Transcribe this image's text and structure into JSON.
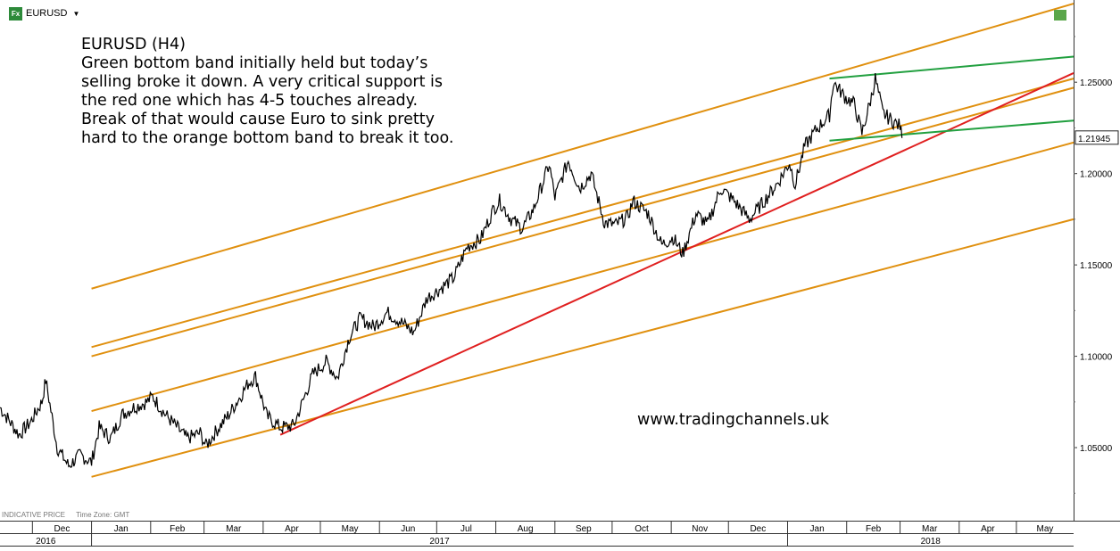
{
  "toolbar": {
    "instrument_label": "EURUSD",
    "fx_icon": "Fx",
    "dropdown_icon": "chevron-down-icon"
  },
  "annotation": {
    "title": "EURUSD (H4)",
    "lines": [
      "Green bottom band initially held but today’s",
      "selling broke it down. A very critical support is",
      "the red one which has 4-5 touches already.",
      "Break of that would cause Euro to sink pretty",
      "hard to the orange bottom band to break it too."
    ]
  },
  "watermark": "www.tradingchannels.uk",
  "footer": {
    "indicative": "INDICATIVE PRICE",
    "timezone": "Time Zone: GMT"
  },
  "colors": {
    "price": "#000000",
    "orange_channel": "#e0900f",
    "red_trendline": "#e02020",
    "green_channel": "#22a040",
    "axis_text": "#000000",
    "grid": "#555555"
  },
  "chart_data": {
    "type": "line",
    "symbol": "EURUSD",
    "timeframe": "H4",
    "x_months": [
      "Dec",
      "Jan",
      "Feb",
      "Mar",
      "Apr",
      "May",
      "Jun",
      "Jul",
      "Aug",
      "Sep",
      "Oct",
      "Nov",
      "Dec",
      "Jan",
      "Feb",
      "Mar",
      "Apr",
      "May"
    ],
    "x_years": [
      "2016",
      "2017",
      "2018"
    ],
    "ylim": [
      1.01,
      1.295
    ],
    "y_ticks": [
      "1.05000",
      "1.10000",
      "1.15000",
      "1.20000",
      "1.25000"
    ],
    "last_price": "1.21945",
    "series": [
      {
        "values": [
          [
            "2016-11-14",
            1.072
          ],
          [
            "2016-11-18",
            1.066
          ],
          [
            "2016-11-24",
            1.057
          ],
          [
            "2016-11-30",
            1.064
          ],
          [
            "2016-12-06",
            1.075
          ],
          [
            "2016-12-08",
            1.087
          ],
          [
            "2016-12-14",
            1.05
          ],
          [
            "2016-12-20",
            1.04
          ],
          [
            "2016-12-26",
            1.046
          ],
          [
            "2017-01-01",
            1.042
          ],
          [
            "2017-01-05",
            1.061
          ],
          [
            "2017-01-11",
            1.055
          ],
          [
            "2017-01-17",
            1.068
          ],
          [
            "2017-01-23",
            1.072
          ],
          [
            "2017-01-30",
            1.075
          ],
          [
            "2017-02-02",
            1.078
          ],
          [
            "2017-02-08",
            1.069
          ],
          [
            "2017-02-14",
            1.062
          ],
          [
            "2017-02-20",
            1.055
          ],
          [
            "2017-02-27",
            1.058
          ],
          [
            "2017-03-02",
            1.051
          ],
          [
            "2017-03-08",
            1.06
          ],
          [
            "2017-03-14",
            1.068
          ],
          [
            "2017-03-20",
            1.078
          ],
          [
            "2017-03-24",
            1.085
          ],
          [
            "2017-03-28",
            1.089
          ],
          [
            "2017-04-03",
            1.067
          ],
          [
            "2017-04-10",
            1.061
          ],
          [
            "2017-04-17",
            1.062
          ],
          [
            "2017-04-21",
            1.073
          ],
          [
            "2017-04-27",
            1.09
          ],
          [
            "2017-05-04",
            1.097
          ],
          [
            "2017-05-10",
            1.088
          ],
          [
            "2017-05-16",
            1.11
          ],
          [
            "2017-05-22",
            1.121
          ],
          [
            "2017-05-29",
            1.116
          ],
          [
            "2017-06-05",
            1.124
          ],
          [
            "2017-06-12",
            1.119
          ],
          [
            "2017-06-19",
            1.113
          ],
          [
            "2017-06-26",
            1.132
          ],
          [
            "2017-07-03",
            1.137
          ],
          [
            "2017-07-10",
            1.143
          ],
          [
            "2017-07-17",
            1.16
          ],
          [
            "2017-07-24",
            1.164
          ],
          [
            "2017-07-31",
            1.181
          ],
          [
            "2017-08-03",
            1.185
          ],
          [
            "2017-08-09",
            1.175
          ],
          [
            "2017-08-15",
            1.17
          ],
          [
            "2017-08-21",
            1.181
          ],
          [
            "2017-08-29",
            1.205
          ],
          [
            "2017-09-01",
            1.187
          ],
          [
            "2017-09-08",
            1.207
          ],
          [
            "2017-09-14",
            1.192
          ],
          [
            "2017-09-20",
            1.2
          ],
          [
            "2017-09-27",
            1.173
          ],
          [
            "2017-10-03",
            1.172
          ],
          [
            "2017-10-09",
            1.176
          ],
          [
            "2017-10-12",
            1.185
          ],
          [
            "2017-10-20",
            1.178
          ],
          [
            "2017-10-27",
            1.161
          ],
          [
            "2017-11-02",
            1.165
          ],
          [
            "2017-11-07",
            1.156
          ],
          [
            "2017-11-14",
            1.178
          ],
          [
            "2017-11-20",
            1.172
          ],
          [
            "2017-11-27",
            1.192
          ],
          [
            "2017-12-04",
            1.185
          ],
          [
            "2017-12-12",
            1.175
          ],
          [
            "2017-12-19",
            1.184
          ],
          [
            "2017-12-27",
            1.195
          ],
          [
            "2018-01-02",
            1.206
          ],
          [
            "2018-01-05",
            1.194
          ],
          [
            "2018-01-10",
            1.215
          ],
          [
            "2018-01-16",
            1.224
          ],
          [
            "2018-01-23",
            1.232
          ],
          [
            "2018-01-25",
            1.25
          ],
          [
            "2018-01-31",
            1.242
          ],
          [
            "2018-02-05",
            1.238
          ],
          [
            "2018-02-09",
            1.222
          ],
          [
            "2018-02-14",
            1.242
          ],
          [
            "2018-02-16",
            1.252
          ],
          [
            "2018-02-20",
            1.233
          ],
          [
            "2018-02-26",
            1.228
          ],
          [
            "2018-03-01",
            1.226
          ],
          [
            "2018-03-02",
            1.21945
          ]
        ]
      }
    ],
    "trendlines": [
      {
        "type": "orange-channel",
        "from": [
          "2017-01-01",
          1.137
        ],
        "to": [
          "2018-05-31",
          1.293
        ]
      },
      {
        "type": "orange-channel",
        "from": [
          "2017-01-01",
          1.105
        ],
        "to": [
          "2018-05-31",
          1.252
        ]
      },
      {
        "type": "orange-channel",
        "from": [
          "2017-01-01",
          1.1
        ],
        "to": [
          "2018-05-31",
          1.247
        ]
      },
      {
        "type": "orange-channel",
        "from": [
          "2017-01-01",
          1.07
        ],
        "to": [
          "2018-05-31",
          1.217
        ]
      },
      {
        "type": "orange-channel",
        "from": [
          "2017-01-01",
          1.034
        ],
        "to": [
          "2018-05-31",
          1.175
        ]
      },
      {
        "type": "red-support",
        "from": [
          "2017-04-10",
          1.057
        ],
        "to": [
          "2018-05-31",
          1.255
        ]
      },
      {
        "type": "green-channel",
        "from": [
          "2018-01-23",
          1.252
        ],
        "to": [
          "2018-05-31",
          1.264
        ]
      },
      {
        "type": "green-channel",
        "from": [
          "2018-01-23",
          1.218
        ],
        "to": [
          "2018-05-31",
          1.229
        ]
      }
    ]
  }
}
